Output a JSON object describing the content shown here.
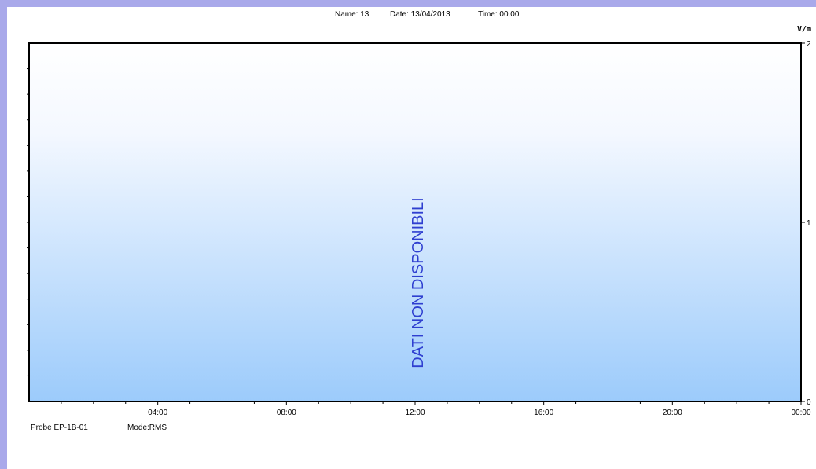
{
  "header": {
    "name": "Name: 13",
    "date": "Date: 13/04/2013",
    "time": "Time: 00.00"
  },
  "footer": {
    "probe": "Probe EP-1B-01",
    "mode": "Mode:RMS"
  },
  "chart_data": {
    "type": "line",
    "title": "",
    "xlabel": "",
    "ylabel": "V/m",
    "x_tick_labels": [
      "04:00",
      "08:00",
      "12:00",
      "16:00",
      "20:00",
      "00:00"
    ],
    "x_tick_hours": [
      4,
      8,
      12,
      16,
      20,
      24
    ],
    "xlim_hours": [
      0,
      24
    ],
    "y_tick_labels": [
      "2",
      "1",
      "0"
    ],
    "y_tick_values": [
      2,
      1,
      0
    ],
    "ylim": [
      0,
      2
    ],
    "grid": false,
    "series": [],
    "annotation": "DATI NON DISPONIBILI",
    "colors": {
      "background_top": "#ffffff",
      "background_bottom": "#9ccbfb",
      "frame": "#a9a9ea",
      "annotation": "#2f3fd0"
    }
  }
}
